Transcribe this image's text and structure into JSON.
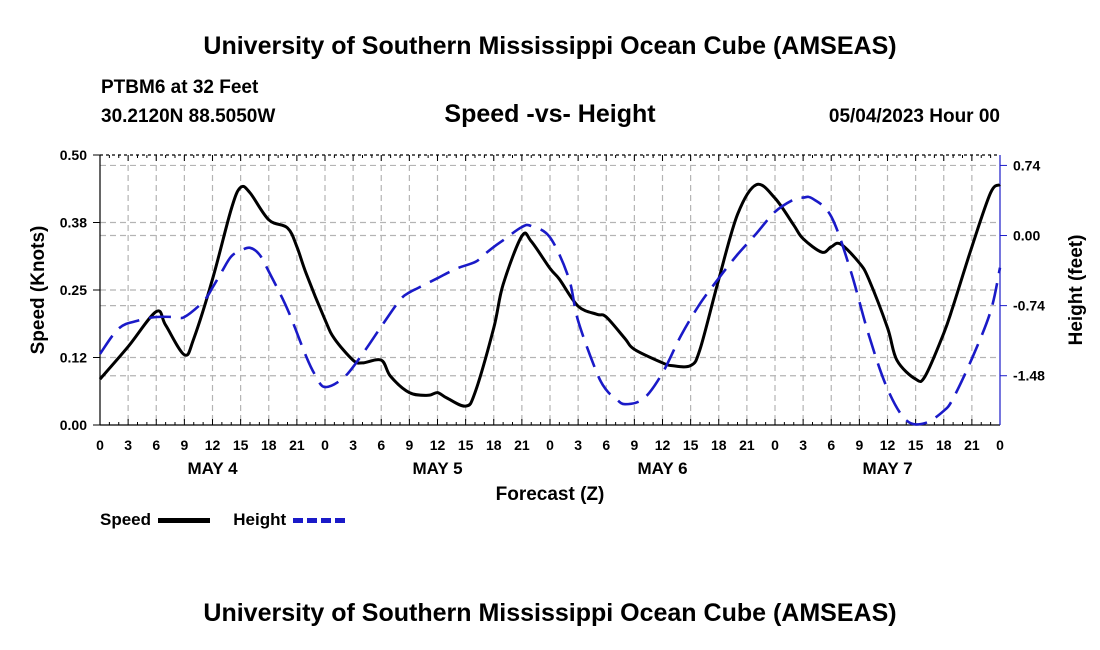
{
  "header": {
    "title": "University of Southern Mississippi Ocean Cube (AMSEAS)",
    "station": "PTBM6 at 32 Feet",
    "location": "30.2120N  88.5050W",
    "date_hour": "05/04/2023 Hour 00",
    "footer_title": "University of Southern Mississippi Ocean Cube (AMSEAS)"
  },
  "legend": {
    "speed_label": "Speed",
    "height_label": "Height"
  },
  "colors": {
    "speed": "#000000",
    "height": "#1a1ac8",
    "grid": "#b4b4b4"
  },
  "chart_data": {
    "type": "line",
    "title": "Speed -vs- Height",
    "xlabel": "Forecast (Z)",
    "ylabel": "Speed (Knots)",
    "y2label": "Height (feet)",
    "xlim": [
      0,
      96
    ],
    "ylim": [
      0,
      0.5
    ],
    "y2lim": [
      -2.0,
      0.85
    ],
    "xticks": [
      0,
      3,
      6,
      9,
      12,
      15,
      18,
      21,
      24,
      27,
      30,
      33,
      36,
      39,
      42,
      45,
      48,
      51,
      54,
      57,
      60,
      63,
      66,
      69,
      72,
      75,
      78,
      81,
      84,
      87,
      90,
      93,
      96
    ],
    "xtick_labels": [
      "0",
      "3",
      "6",
      "9",
      "12",
      "15",
      "18",
      "21",
      "0",
      "3",
      "6",
      "9",
      "12",
      "15",
      "18",
      "21",
      "0",
      "3",
      "6",
      "9",
      "12",
      "15",
      "18",
      "21",
      "0",
      "3",
      "6",
      "9",
      "12",
      "15",
      "18",
      "21",
      "0"
    ],
    "day_labels": [
      {
        "x": 12,
        "label": "MAY 4"
      },
      {
        "x": 36,
        "label": "MAY 5"
      },
      {
        "x": 60,
        "label": "MAY 6"
      },
      {
        "x": 84,
        "label": "MAY 7"
      }
    ],
    "yticks": [
      0,
      0.125,
      0.25,
      0.375,
      0.5
    ],
    "ytick_labels": [
      "0.00",
      "0.12",
      "0.25",
      "0.38",
      "0.50"
    ],
    "y2ticks": [
      0.74,
      0.0,
      -0.74,
      -1.48
    ],
    "y2tick_labels": [
      "0.74",
      "0.00",
      "-0.74",
      "-1.48"
    ],
    "series": [
      {
        "name": "Speed",
        "axis": "left",
        "style": "solid",
        "x": [
          0,
          3,
          6,
          7,
          9,
          10,
          12,
          14,
          15,
          16,
          18,
          20,
          21,
          22,
          24,
          25,
          27,
          28,
          30,
          31,
          33,
          35,
          36,
          37,
          39,
          40,
          42,
          43,
          45,
          46,
          48,
          49,
          51,
          53,
          54,
          56,
          57,
          60,
          61,
          63,
          64,
          66,
          68,
          70,
          72,
          74,
          75,
          77,
          78,
          79,
          81,
          82,
          84,
          85,
          87,
          88,
          90,
          91,
          93,
          95,
          96
        ],
        "y": [
          0.085,
          0.145,
          0.21,
          0.185,
          0.13,
          0.16,
          0.27,
          0.4,
          0.44,
          0.43,
          0.38,
          0.365,
          0.33,
          0.28,
          0.195,
          0.16,
          0.12,
          0.115,
          0.12,
          0.09,
          0.06,
          0.055,
          0.06,
          0.05,
          0.035,
          0.06,
          0.18,
          0.26,
          0.35,
          0.34,
          0.29,
          0.27,
          0.22,
          0.205,
          0.2,
          0.16,
          0.14,
          0.115,
          0.11,
          0.11,
          0.14,
          0.27,
          0.39,
          0.445,
          0.42,
          0.37,
          0.345,
          0.32,
          0.33,
          0.335,
          0.3,
          0.27,
          0.18,
          0.12,
          0.085,
          0.09,
          0.17,
          0.22,
          0.33,
          0.43,
          0.445
        ]
      },
      {
        "name": "Height",
        "axis": "right",
        "style": "dashed",
        "x": [
          0,
          2,
          4,
          6,
          8,
          9,
          11,
          12,
          13,
          14,
          15,
          16,
          17,
          18,
          20,
          22,
          23,
          24,
          26,
          28,
          30,
          32,
          33,
          34,
          36,
          38,
          40,
          41,
          42,
          43,
          45,
          46,
          48,
          50,
          51,
          53,
          54,
          55,
          56,
          58,
          60,
          62,
          64,
          66,
          68,
          70,
          72,
          74,
          75,
          76,
          78,
          80,
          82,
          84,
          86,
          88,
          90,
          91,
          93,
          95,
          96
        ],
        "y": [
          -1.25,
          -0.98,
          -0.9,
          -0.86,
          -0.86,
          -0.86,
          -0.7,
          -0.55,
          -0.38,
          -0.22,
          -0.16,
          -0.13,
          -0.2,
          -0.38,
          -0.78,
          -1.28,
          -1.48,
          -1.6,
          -1.5,
          -1.25,
          -0.96,
          -0.68,
          -0.6,
          -0.55,
          -0.45,
          -0.35,
          -0.28,
          -0.2,
          -0.12,
          -0.05,
          0.09,
          0.1,
          -0.02,
          -0.45,
          -0.9,
          -1.45,
          -1.63,
          -1.72,
          -1.78,
          -1.72,
          -1.45,
          -1.05,
          -0.72,
          -0.45,
          -0.2,
          0.02,
          0.25,
          0.38,
          0.4,
          0.39,
          0.2,
          -0.35,
          -1.05,
          -1.62,
          -1.95,
          -1.98,
          -1.85,
          -1.72,
          -1.3,
          -0.8,
          -0.34
        ]
      }
    ]
  }
}
